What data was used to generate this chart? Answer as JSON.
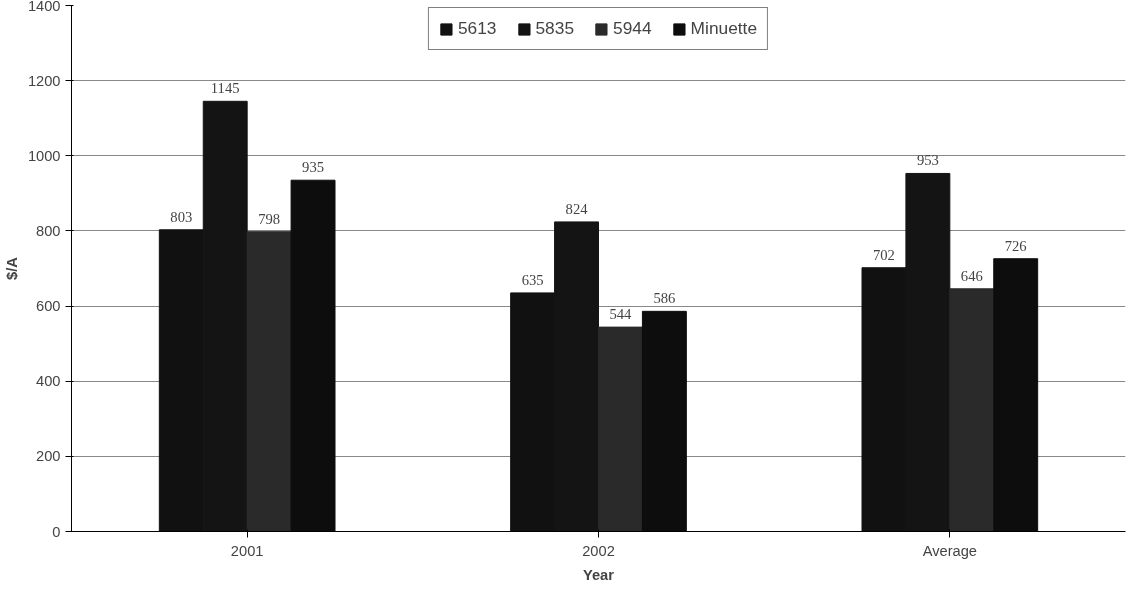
{
  "chart_data": {
    "type": "bar",
    "xlabel": "Year",
    "ylabel": "$/A",
    "categories": [
      "2001",
      "2002",
      "Average"
    ],
    "series": [
      {
        "name": "5613",
        "color": "#111111",
        "values": [
          803,
          635,
          702
        ]
      },
      {
        "name": "5835",
        "color": "#141414",
        "values": [
          1145,
          824,
          953
        ]
      },
      {
        "name": "5944",
        "color": "#2a2a2a",
        "values": [
          798,
          544,
          646
        ]
      },
      {
        "name": "Minuette",
        "color": "#0d0d0d",
        "values": [
          935,
          586,
          726
        ]
      }
    ],
    "ylim": [
      0,
      1400
    ],
    "yticks": [
      0,
      200,
      400,
      600,
      800,
      1000,
      1200,
      1400
    ],
    "grid": "y",
    "legend": "top",
    "data_labels": true
  }
}
